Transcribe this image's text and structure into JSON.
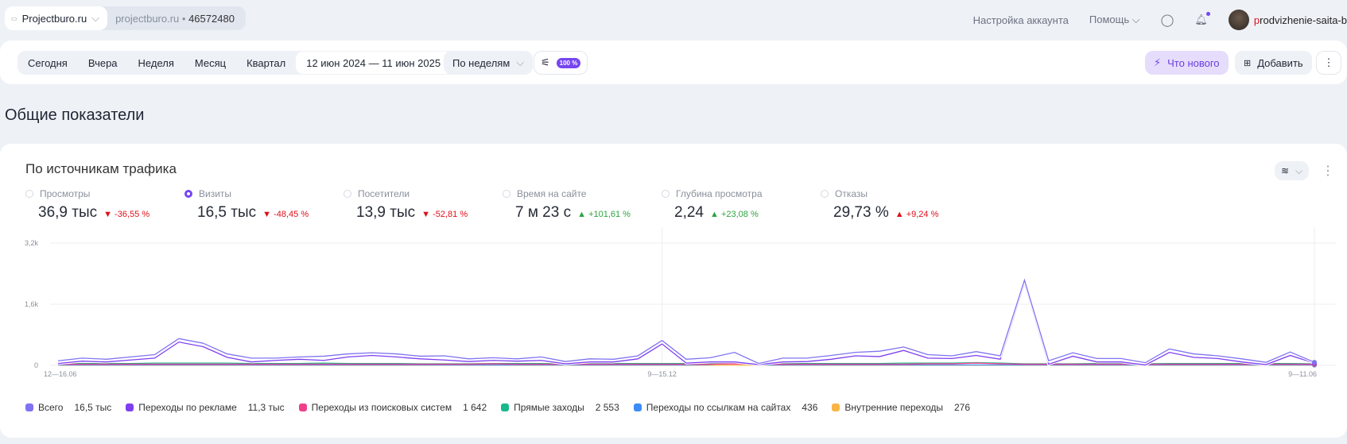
{
  "topbar": {
    "counter_name": "Projectburo.ru",
    "counter_domain": "projectburo.ru",
    "counter_id": "46572480",
    "account_settings": "Настройка аккаунта",
    "help": "Помощь",
    "username_first": "p",
    "username_rest": "rodvizhenie-saita-b"
  },
  "toolbar": {
    "periods": [
      "Сегодня",
      "Вчера",
      "Неделя",
      "Месяц",
      "Квартал"
    ],
    "date_range": "12 июн 2024 — 11 июн 2025",
    "grouping": "По неделям",
    "sampling": "100 %",
    "whats_new": "Что нового",
    "add": "Добавить"
  },
  "page_title": "Общие показатели",
  "widget": {
    "title": "По источникам трафика",
    "metrics": [
      {
        "label": "Просмотры",
        "value": "36,9 тыс",
        "delta": "-36,55 %",
        "dir": "down",
        "selected": false
      },
      {
        "label": "Визиты",
        "value": "16,5 тыс",
        "delta": "-48,45 %",
        "dir": "down",
        "selected": true
      },
      {
        "label": "Посетители",
        "value": "13,9 тыс",
        "delta": "-52,81 %",
        "dir": "down",
        "selected": false
      },
      {
        "label": "Время на сайте",
        "value": "7 м 23 с",
        "delta": "+101,61 %",
        "dir": "up",
        "selected": false
      },
      {
        "label": "Глубина просмотра",
        "value": "2,24",
        "delta": "+23,08 %",
        "dir": "up",
        "selected": false
      },
      {
        "label": "Отказы",
        "value": "29,73 %",
        "delta": "+9,24 %",
        "dir": "up-bad",
        "selected": false
      }
    ]
  },
  "chart_data": {
    "type": "line",
    "ylim": [
      0,
      3200
    ],
    "yticks": [
      "0",
      "1,6k",
      "3,2k"
    ],
    "xtick_labels": [
      "12—16.06",
      "9—15.12",
      "9—11.06"
    ],
    "grid": true,
    "series": [
      {
        "name": "Всего",
        "total": "16,5 тыс",
        "color": "#8073f0",
        "values": [
          120,
          190,
          160,
          220,
          280,
          700,
          580,
          300,
          190,
          190,
          220,
          240,
          300,
          330,
          300,
          240,
          250,
          170,
          200,
          170,
          220,
          100,
          170,
          160,
          250,
          650,
          160,
          200,
          340,
          50,
          190,
          190,
          260,
          340,
          370,
          480,
          280,
          250,
          360,
          250,
          2230,
          120,
          330,
          180,
          180,
          70,
          430,
          300,
          250,
          170,
          80,
          350,
          80
        ]
      },
      {
        "name": "Переходы по рекламе",
        "total": "11,3 тыс",
        "color": "#7f3ff0",
        "values": [
          50,
          110,
          90,
          140,
          190,
          610,
          490,
          210,
          90,
          130,
          160,
          130,
          220,
          260,
          220,
          170,
          140,
          100,
          130,
          110,
          130,
          40,
          90,
          90,
          170,
          560,
          60,
          90,
          90,
          20,
          90,
          100,
          160,
          250,
          230,
          390,
          190,
          180,
          260,
          160,
          2150,
          30,
          240,
          90,
          90,
          10,
          340,
          210,
          180,
          90,
          20,
          260,
          60
        ]
      },
      {
        "name": "Переходы из поисковых систем",
        "total": "1 642",
        "color": "#f03f8a",
        "values": [
          30,
          30,
          30,
          30,
          30,
          30,
          30,
          30,
          30,
          30,
          30,
          30,
          30,
          30,
          30,
          30,
          30,
          30,
          40,
          30,
          30,
          30,
          30,
          30,
          30,
          30,
          30,
          30,
          40,
          30,
          30,
          30,
          30,
          30,
          30,
          30,
          40,
          40,
          60,
          40,
          30,
          30,
          30,
          30,
          30,
          30,
          30,
          30,
          30,
          30,
          30,
          30,
          30
        ]
      },
      {
        "name": "Прямые заходы",
        "total": "2 553",
        "color": "#16b98a",
        "values": [
          60,
          50,
          50,
          50,
          60,
          60,
          60,
          60,
          50,
          50,
          50,
          60,
          50,
          50,
          50,
          40,
          40,
          40,
          50,
          50,
          50,
          40,
          50,
          50,
          50,
          50,
          50,
          50,
          60,
          40,
          50,
          50,
          50,
          50,
          50,
          60,
          60,
          60,
          70,
          60,
          40,
          40,
          40,
          50,
          50,
          40,
          50,
          50,
          50,
          50,
          50,
          50,
          40
        ]
      },
      {
        "name": "Переходы по ссылкам на сайтах",
        "total": "436",
        "color": "#3c8cf5",
        "values": [
          10,
          10,
          10,
          10,
          10,
          10,
          10,
          10,
          10,
          10,
          10,
          10,
          10,
          10,
          10,
          10,
          10,
          10,
          10,
          10,
          10,
          10,
          10,
          10,
          10,
          10,
          10,
          20,
          90,
          10,
          10,
          10,
          10,
          10,
          10,
          10,
          10,
          10,
          10,
          10,
          10,
          10,
          10,
          10,
          10,
          10,
          10,
          10,
          10,
          10,
          10,
          10,
          10
        ]
      },
      {
        "name": "Внутренние переходы",
        "total": "276",
        "color": "#f8b445",
        "values": [
          5,
          5,
          5,
          5,
          5,
          5,
          5,
          5,
          5,
          5,
          5,
          5,
          5,
          5,
          5,
          5,
          5,
          5,
          5,
          5,
          5,
          5,
          5,
          5,
          5,
          5,
          5,
          5,
          5,
          5,
          5,
          5,
          5,
          5,
          5,
          5,
          5,
          5,
          5,
          5,
          5,
          5,
          5,
          5,
          5,
          5,
          5,
          5,
          5,
          5,
          5,
          5,
          5
        ]
      }
    ]
  }
}
